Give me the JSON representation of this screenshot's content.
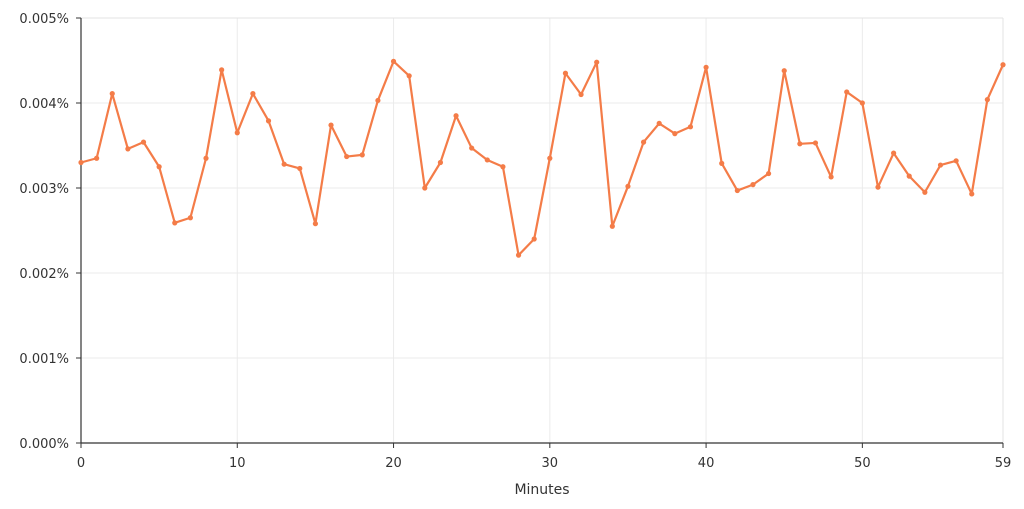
{
  "chart_data": {
    "type": "line",
    "title": "",
    "xlabel": "Minutes",
    "ylabel": "",
    "xlim": [
      0,
      59
    ],
    "ylim": [
      0,
      0.005
    ],
    "x_ticks": [
      0,
      10,
      20,
      30,
      40,
      50,
      59
    ],
    "y_ticks": [
      0,
      0.001,
      0.002,
      0.003,
      0.004,
      0.005
    ],
    "y_tick_labels": [
      "0.000%",
      "0.001%",
      "0.002%",
      "0.003%",
      "0.004%",
      "0.005%"
    ],
    "grid": true,
    "series": [
      {
        "color": "#f47c48",
        "x": [
          0,
          1,
          2,
          3,
          4,
          5,
          6,
          7,
          8,
          9,
          10,
          11,
          12,
          13,
          14,
          15,
          16,
          17,
          18,
          19,
          20,
          21,
          22,
          23,
          24,
          25,
          26,
          27,
          28,
          29,
          30,
          31,
          32,
          33,
          34,
          35,
          36,
          37,
          38,
          39,
          40,
          41,
          42,
          43,
          44,
          45,
          46,
          47,
          48,
          49,
          50,
          51,
          52,
          53,
          54,
          55,
          56,
          57,
          58,
          59
        ],
        "values": [
          0.0033,
          0.00335,
          0.00411,
          0.00346,
          0.00354,
          0.00325,
          0.00259,
          0.00265,
          0.00335,
          0.00439,
          0.00365,
          0.00411,
          0.00379,
          0.00328,
          0.00323,
          0.00258,
          0.00374,
          0.00337,
          0.00339,
          0.00403,
          0.00449,
          0.00432,
          0.003,
          0.0033,
          0.00385,
          0.00347,
          0.00333,
          0.00325,
          0.00221,
          0.0024,
          0.00335,
          0.00435,
          0.0041,
          0.00448,
          0.00255,
          0.00302,
          0.00354,
          0.00376,
          0.00364,
          0.00372,
          0.00442,
          0.00329,
          0.00297,
          0.00304,
          0.00317,
          0.00438,
          0.00352,
          0.00353,
          0.00313,
          0.00413,
          0.004,
          0.00301,
          0.00341,
          0.00314,
          0.00295,
          0.00327,
          0.00332,
          0.00293,
          0.00404,
          0.00445
        ]
      }
    ]
  }
}
